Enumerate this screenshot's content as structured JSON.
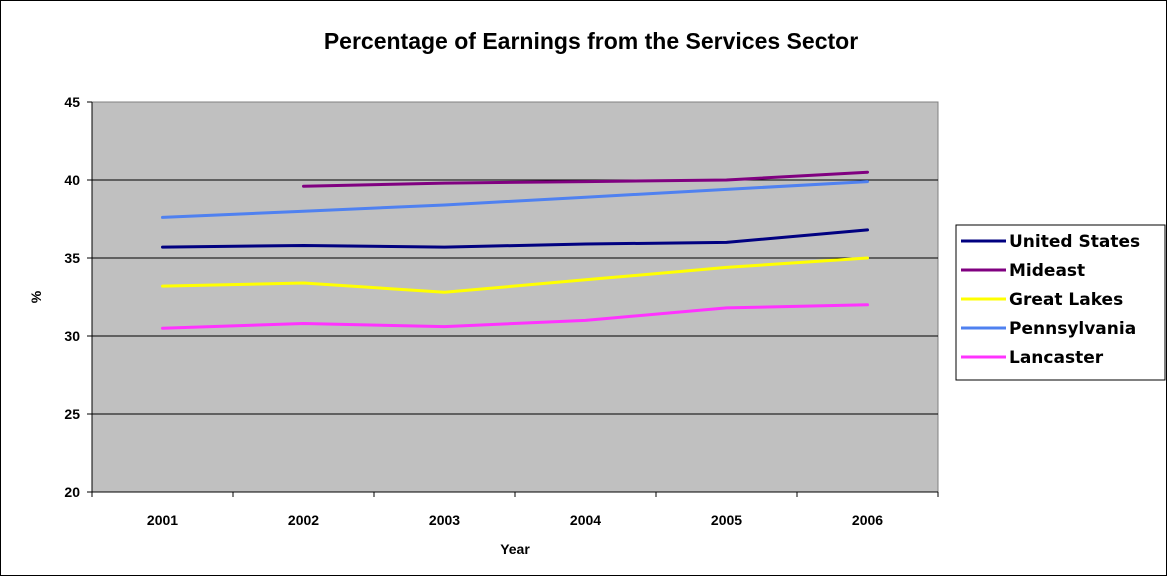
{
  "chart_data": {
    "type": "line",
    "title": "Percentage of Earnings from the Services Sector",
    "xlabel": "Year",
    "ylabel": "%",
    "categories": [
      "2001",
      "2002",
      "2003",
      "2004",
      "2005",
      "2006"
    ],
    "ylim": [
      20,
      45
    ],
    "yticks": [
      20,
      25,
      30,
      35,
      40,
      45
    ],
    "grid": true,
    "plot_background": "#C0C0C0",
    "legend_position": "right",
    "series": [
      {
        "name": "United States",
        "color": "#000080",
        "values": [
          35.7,
          35.8,
          35.7,
          35.9,
          36.0,
          36.8
        ]
      },
      {
        "name": "Mideast",
        "color": "#800080",
        "values": [
          null,
          39.6,
          39.8,
          39.9,
          40.0,
          40.5
        ]
      },
      {
        "name": "Great Lakes",
        "color": "#FFFF00",
        "values": [
          33.2,
          33.4,
          32.8,
          33.6,
          34.4,
          35.0
        ]
      },
      {
        "name": "Pennsylvania",
        "color": "#4F81F0",
        "values": [
          37.6,
          38.0,
          38.4,
          38.9,
          39.4,
          39.9
        ]
      },
      {
        "name": "Lancaster",
        "color": "#FF33FF",
        "values": [
          30.5,
          30.8,
          30.6,
          31.0,
          31.8,
          32.0
        ]
      }
    ]
  }
}
